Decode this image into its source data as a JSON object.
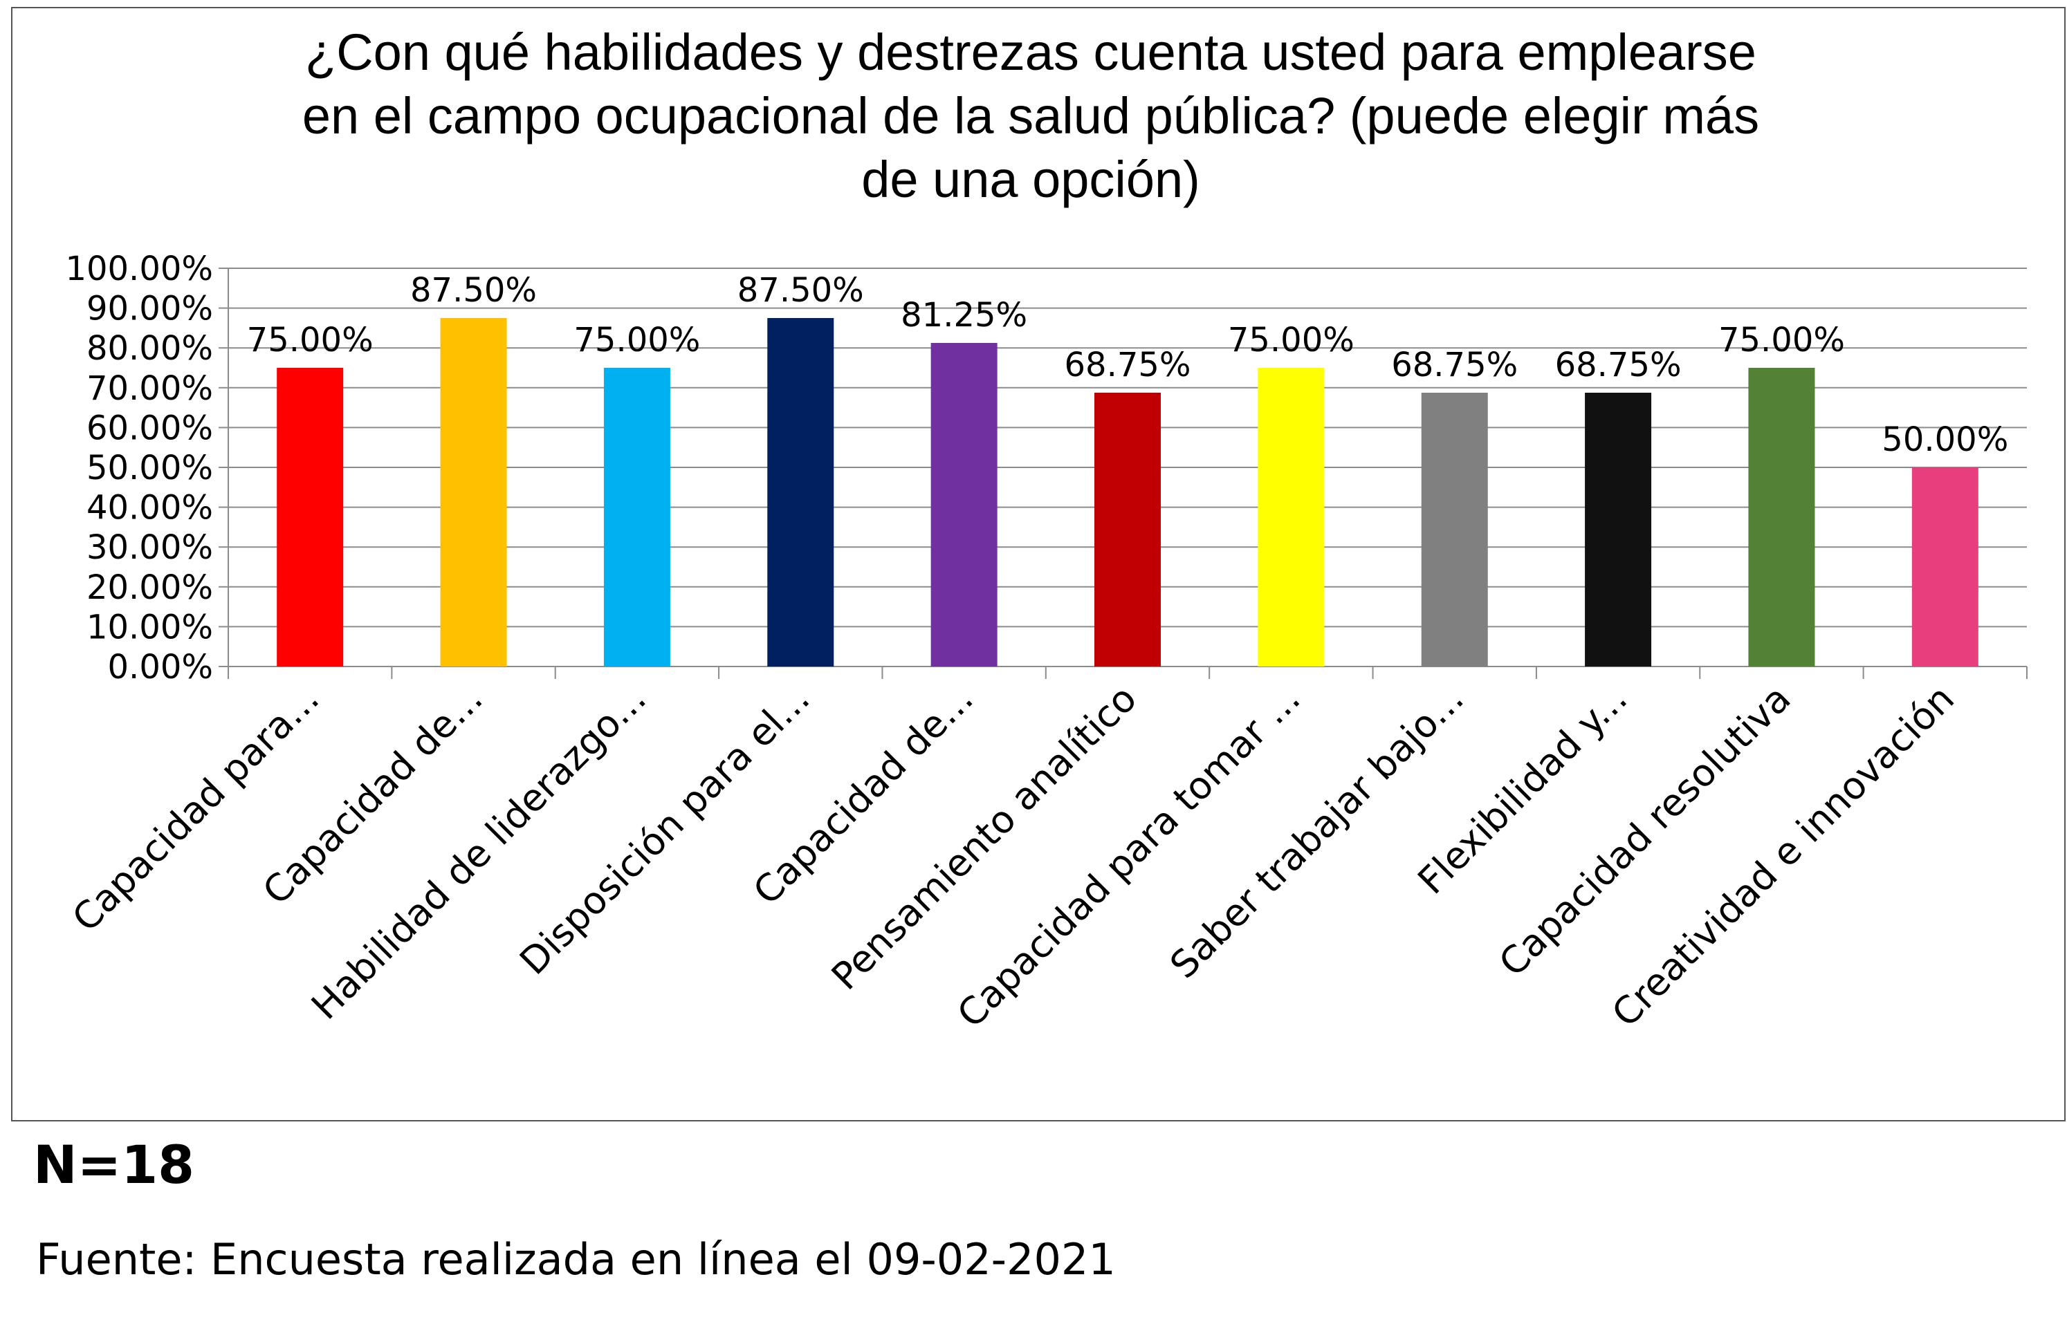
{
  "chart_data": {
    "type": "bar",
    "title": "¿Con qué habilidades y destrezas cuenta usted para emplearse\nen el campo ocupacional de la salud pública? (puede elegir más\nde una opción)",
    "categories": [
      "Capacidad para...",
      "Capacidad de...",
      "Habilidad de liderazgo...",
      "Disposición para el...",
      "Capacidad de...",
      "Pensamiento analítico",
      "Capacidad para tomar ...",
      "Saber trabajar bajo...",
      "Flexibilidad y...",
      "Capacidad resolutiva",
      "Creatividad e innovación"
    ],
    "values": [
      75.0,
      87.5,
      75.0,
      87.5,
      81.25,
      68.75,
      75.0,
      68.75,
      68.75,
      75.0,
      50.0
    ],
    "data_labels": [
      "75.00%",
      "87.50%",
      "75.00%",
      "87.50%",
      "81.25%",
      "68.75%",
      "75.00%",
      "68.75%",
      "68.75%",
      "75.00%",
      "50.00%"
    ],
    "colors": [
      "#ff0000",
      "#ffc000",
      "#00b0f0",
      "#002060",
      "#7030a0",
      "#c00000",
      "#ffff00",
      "#808080",
      "#111111",
      "#538135",
      "#e83e7e"
    ],
    "ylim": [
      0,
      100
    ],
    "yticks": [
      "0.00%",
      "10.00%",
      "20.00%",
      "30.00%",
      "40.00%",
      "50.00%",
      "60.00%",
      "70.00%",
      "80.00%",
      "90.00%",
      "100.00%"
    ],
    "grid": true,
    "xlabel": "",
    "ylabel": ""
  },
  "footer": {
    "n": "N=18",
    "source": "Fuente: Encuesta realizada en línea el 09-02-2021"
  }
}
